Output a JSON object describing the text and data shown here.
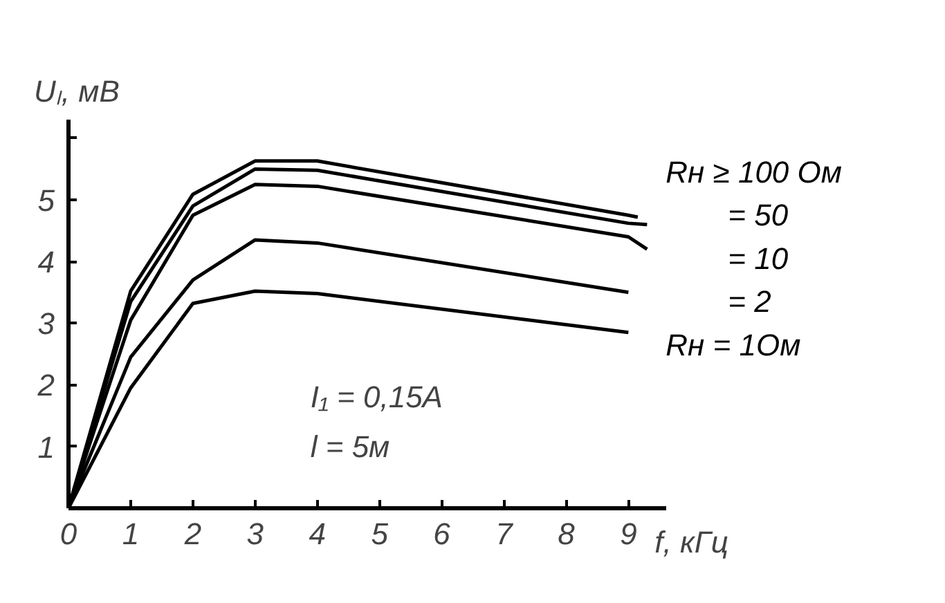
{
  "chart_data": {
    "type": "line",
    "xlabel": "f, кГц",
    "ylabel": "Uₗ, мВ",
    "xlim": [
      0,
      9.6
    ],
    "ylim": [
      0,
      6.3
    ],
    "xticks": [
      0,
      1,
      2,
      3,
      4,
      5,
      6,
      7,
      8,
      9
    ],
    "yticks": [
      1,
      2,
      3,
      4,
      5,
      {
        "value": 6,
        "label": null
      }
    ],
    "grid": false,
    "legend": false,
    "marker": "none",
    "line_style": "solid",
    "series": [
      {
        "name": "Rн ≥ 100 Ом",
        "color": "#000000",
        "x": [
          0,
          1,
          2,
          3,
          4,
          9,
          9.15
        ],
        "values": [
          0,
          3.52,
          5.09,
          5.63,
          5.63,
          4.75,
          4.72
        ]
      },
      {
        "name": "= 50",
        "color": "#000000",
        "x": [
          0,
          1,
          2,
          3,
          4,
          9,
          9.3
        ],
        "values": [
          0,
          3.35,
          4.9,
          5.5,
          5.48,
          4.62,
          4.6
        ]
      },
      {
        "name": "= 10",
        "color": "#000000",
        "x": [
          0,
          1,
          2,
          3,
          4,
          9,
          9.3
        ],
        "values": [
          0,
          3.05,
          4.75,
          5.25,
          5.22,
          4.4,
          4.2
        ]
      },
      {
        "name": "= 2",
        "color": "#000000",
        "x": [
          0,
          1,
          2,
          3,
          4,
          9
        ],
        "values": [
          0,
          2.45,
          3.7,
          4.35,
          4.3,
          3.5
        ]
      },
      {
        "name": "Rн = 1Ом",
        "color": "#000000",
        "x": [
          0,
          1,
          2,
          3,
          4,
          9
        ],
        "values": [
          0,
          1.95,
          3.32,
          3.52,
          3.48,
          2.85
        ]
      }
    ],
    "annotations": [
      "I₁ = 0,15A",
      "l = 5м"
    ]
  }
}
